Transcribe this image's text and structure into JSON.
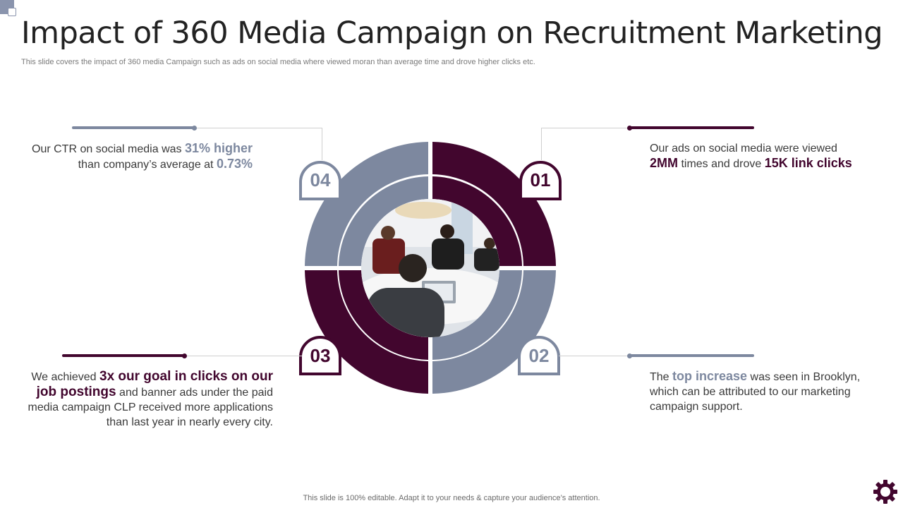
{
  "slide": {
    "title": "Impact of 360 Media Campaign on Recruitment Marketing",
    "subtitle": "This slide covers the impact of 360 media Campaign such as ads on social media where viewed moran than average time and drove higher clicks etc.",
    "footer": "This slide is 100% editable. Adapt it to your needs & capture your audience’s attention."
  },
  "colors": {
    "purple": "#42062e",
    "grey": "#7d889f"
  },
  "items": [
    {
      "number": "01",
      "t1": "Our ads on social media were viewed",
      "h1": "2MM",
      "t2": " times and drove ",
      "h2": "15K link clicks"
    },
    {
      "number": "02",
      "t1": "The ",
      "h1": "top increase",
      "t2": " was seen in Brooklyn, which can be attributed to our marketing campaign support."
    },
    {
      "number": "03",
      "t1": "We achieved ",
      "h1": "3x our goal in clicks on our job postings",
      "t2": " and banner ads under the paid media campaign CLP received more applications than last year in nearly every city."
    },
    {
      "number": "04",
      "t1": "Our CTR on social media was ",
      "h1": "31% higher",
      "t2": " than company’s average at ",
      "h2": "0.73%"
    }
  ],
  "icons": {
    "corner": "corner-square-icon",
    "settings": "gear-icon",
    "photo": "meeting-photo"
  }
}
